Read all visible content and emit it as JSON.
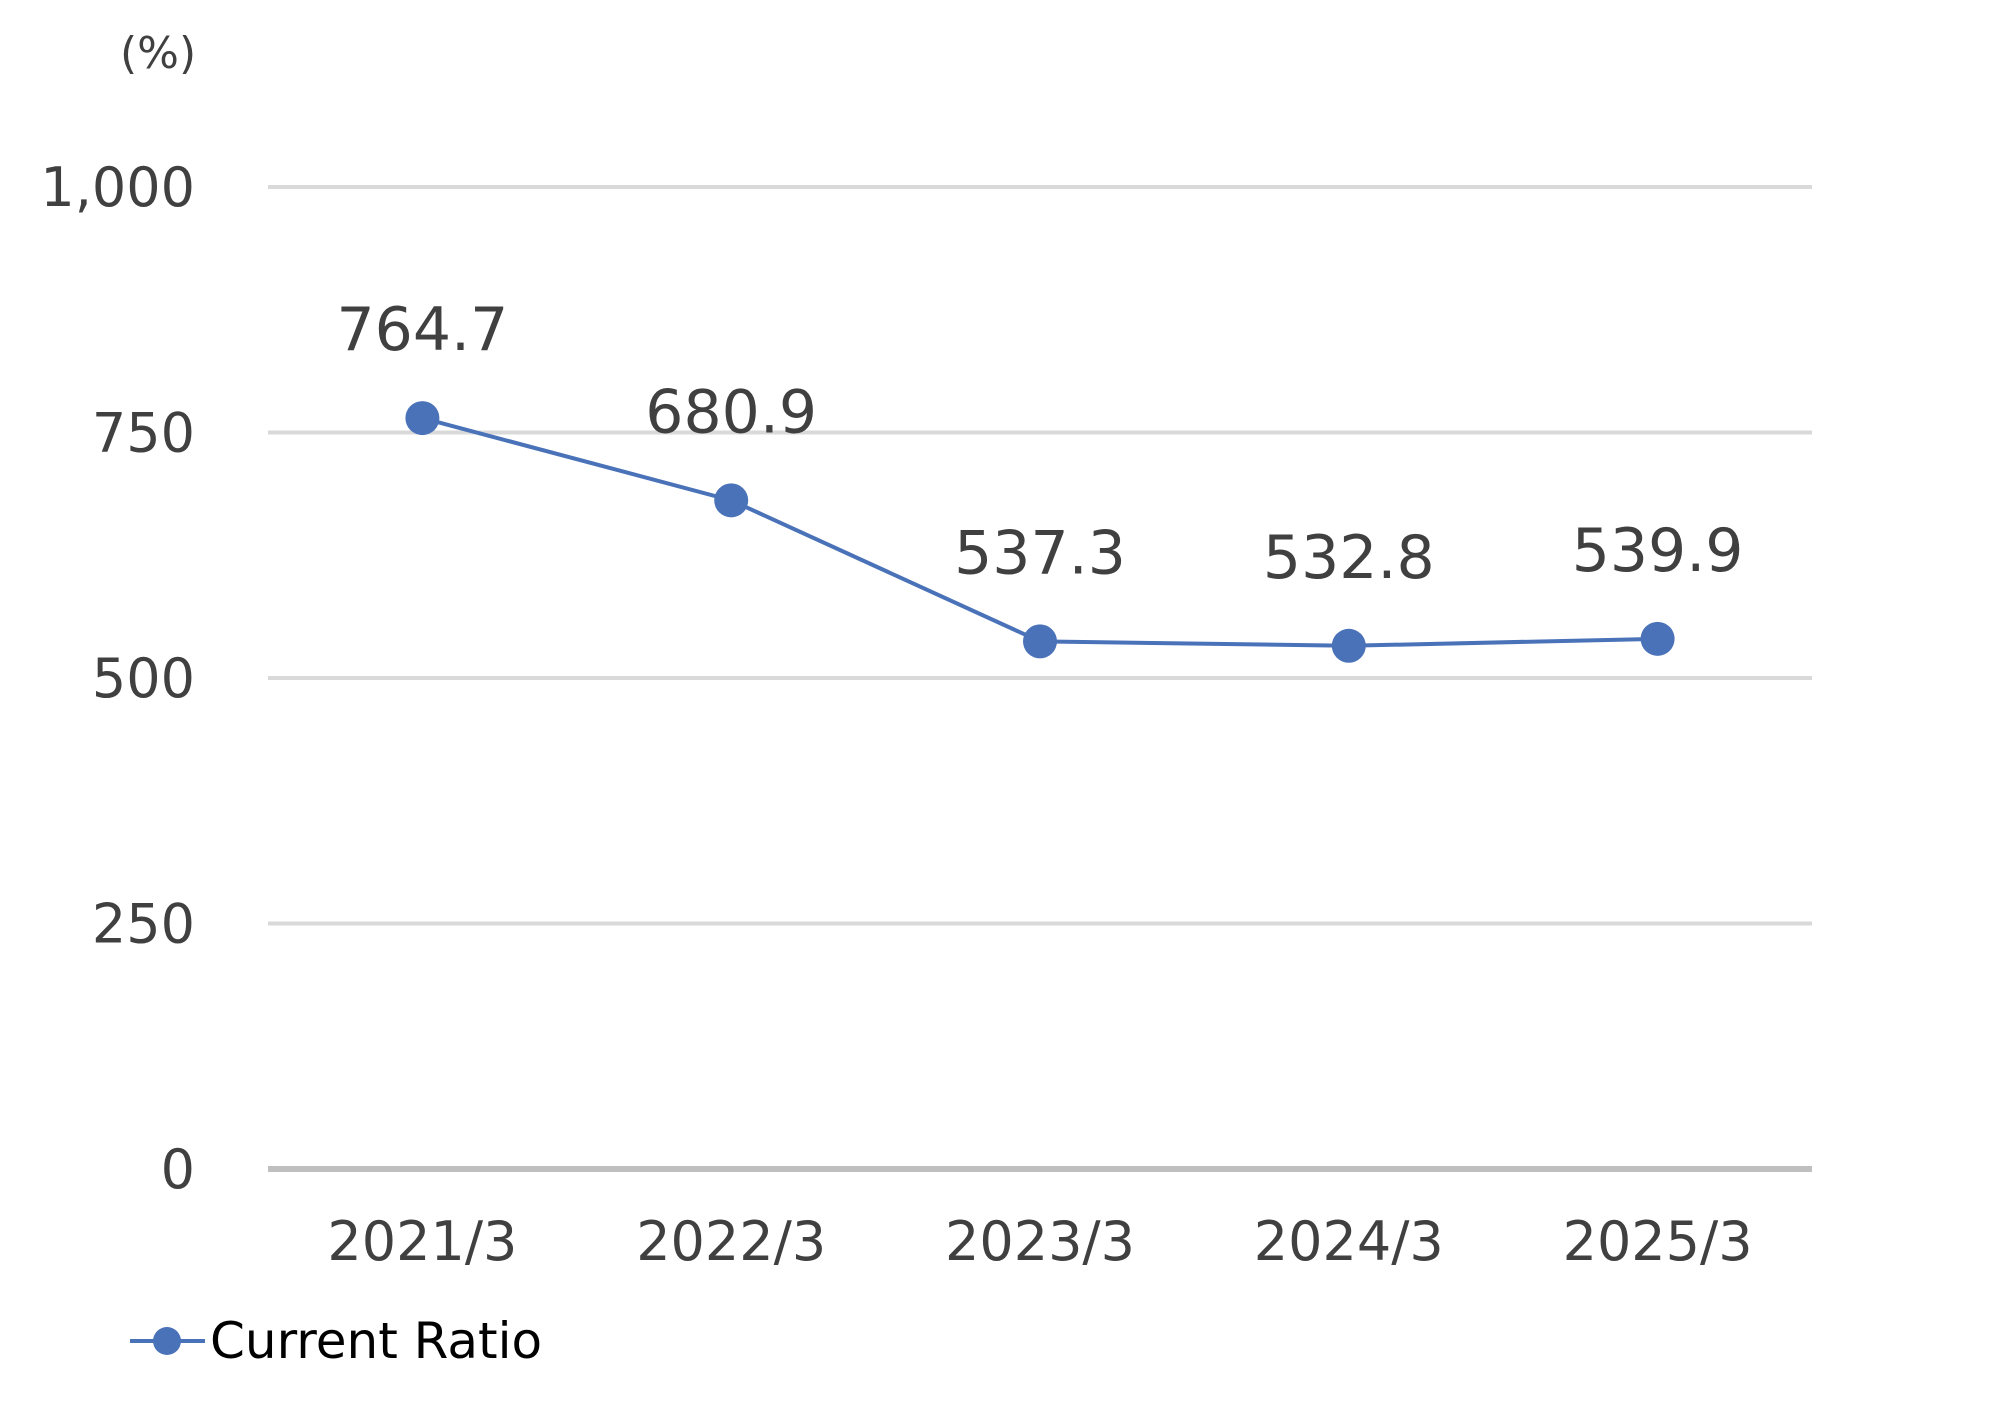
{
  "chart_data": {
    "type": "line",
    "unit_label": "(%)",
    "categories": [
      "2021/3",
      "2022/3",
      "2023/3",
      "2024/3",
      "2025/3"
    ],
    "series": [
      {
        "name": "Current Ratio",
        "values": [
          764.7,
          680.9,
          537.3,
          532.8,
          539.9
        ],
        "data_labels": [
          "764.7",
          "680.9",
          "537.3",
          "532.8",
          "539.9"
        ],
        "color": "#4a72b8"
      }
    ],
    "y_ticks": [
      {
        "value": 0,
        "label": "0"
      },
      {
        "value": 250,
        "label": "250"
      },
      {
        "value": 500,
        "label": "500"
      },
      {
        "value": 750,
        "label": "750"
      },
      {
        "value": 1000,
        "label": "1,000"
      }
    ],
    "ylim": [
      0,
      1000
    ],
    "grid": true,
    "legend_position": "bottom-left",
    "colors": {
      "gridline": "#d9d9d9",
      "baseline": "#bfbfbf",
      "text": "#404040"
    }
  }
}
